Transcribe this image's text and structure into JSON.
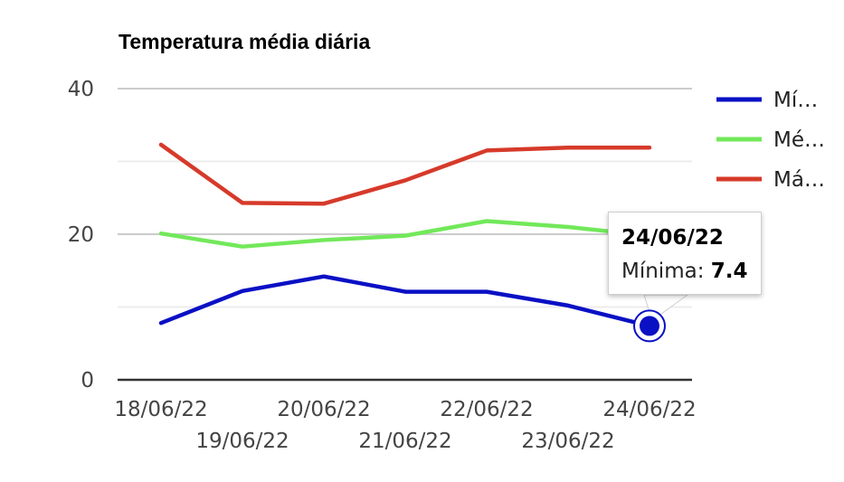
{
  "chart_data": {
    "type": "line",
    "title": "Temperatura média diária",
    "categories": [
      "18/06/22",
      "19/06/22",
      "20/06/22",
      "21/06/22",
      "22/06/22",
      "23/06/22",
      "24/06/22"
    ],
    "ylim": [
      0,
      40
    ],
    "yticks": [
      "0",
      "20",
      "40"
    ],
    "series": [
      {
        "name": "Mí…",
        "color": "#0a10c4",
        "values": [
          7.8,
          12.2,
          14.2,
          12.1,
          12.1,
          10.2,
          7.4
        ]
      },
      {
        "name": "Mé…",
        "color": "#72e85a",
        "values": [
          20.1,
          18.3,
          19.2,
          19.8,
          21.8,
          21.0,
          19.8
        ]
      },
      {
        "name": "Má…",
        "color": "#d63a2a",
        "values": [
          32.3,
          24.3,
          24.2,
          27.4,
          31.5,
          31.9,
          31.9
        ]
      }
    ],
    "grid": true,
    "legend": "right"
  },
  "tooltip": {
    "date": "24/06/22",
    "label": "Mínima:",
    "value": "7.4"
  }
}
